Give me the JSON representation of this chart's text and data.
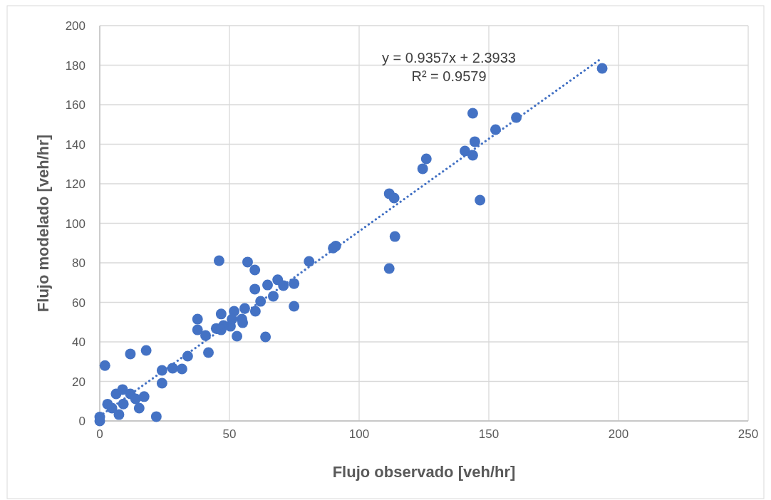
{
  "chart_data": {
    "type": "scatter",
    "xlabel": "Flujo observado [veh/hr]",
    "ylabel": "Flujo modelado [veh/hr]",
    "xlim": [
      0,
      250
    ],
    "xticks": [
      0,
      50,
      100,
      150,
      200,
      250
    ],
    "ylim": [
      0,
      200
    ],
    "yticks": [
      0,
      20,
      40,
      60,
      80,
      100,
      120,
      140,
      160,
      180,
      200
    ],
    "grid": true,
    "annotations": [
      "y = 0.9357x + 2.3933",
      "R² = 0.9579"
    ],
    "series": [
      {
        "type": "scatter",
        "color": "#4472c4",
        "marker": "circle",
        "x": [
          0,
          0,
          2,
          3,
          4.7,
          6.3,
          8.8,
          11.8,
          7.4,
          9.1,
          13.8,
          15.2,
          17.1,
          11.8,
          17.9,
          21.8,
          24,
          24,
          28.1,
          31.7,
          33.9,
          41.9,
          37.7,
          37.7,
          40.8,
          46,
          57,
          59.8,
          59.8,
          64.7,
          68.6,
          70.8,
          74.9,
          74.9,
          66.9,
          62,
          60,
          55.9,
          51.8,
          46.8,
          54.8,
          55.1,
          51,
          50.4,
          47.7,
          44.9,
          46.8,
          52.9,
          63.9,
          80.7,
          90,
          91,
          111.6,
          113.5,
          113.8,
          111.6,
          124.5,
          125.9,
          140.8,
          143.8,
          144.6,
          143.8,
          146.6,
          152.6,
          160.6,
          193.7
        ],
        "values": [
          0,
          2,
          28,
          8.5,
          6.5,
          13.7,
          15.9,
          13.7,
          3.2,
          8.6,
          11.2,
          6.5,
          12.3,
          33.9,
          35.7,
          2.2,
          19.1,
          25.6,
          26.7,
          26.3,
          32.8,
          34.6,
          51.5,
          46.1,
          43.2,
          81.1,
          80.4,
          76.4,
          66.7,
          68.8,
          71.4,
          68.5,
          69.5,
          58,
          63.1,
          60.5,
          55.5,
          56.9,
          55.5,
          54.1,
          51.5,
          49.7,
          51.5,
          47.9,
          48.3,
          46.8,
          46.1,
          42.9,
          42.5,
          80.7,
          87.5,
          88.5,
          115,
          112.8,
          93.3,
          77.1,
          127.6,
          132.6,
          136.6,
          134.4,
          141.3,
          155.7,
          111.7,
          147.4,
          153.5,
          178.4
        ]
      },
      {
        "type": "line",
        "color": "#4472c4",
        "marker": "none",
        "line_style": "dotted",
        "x": [
          0,
          193
        ],
        "values": [
          2.4,
          183.0
        ]
      }
    ]
  }
}
